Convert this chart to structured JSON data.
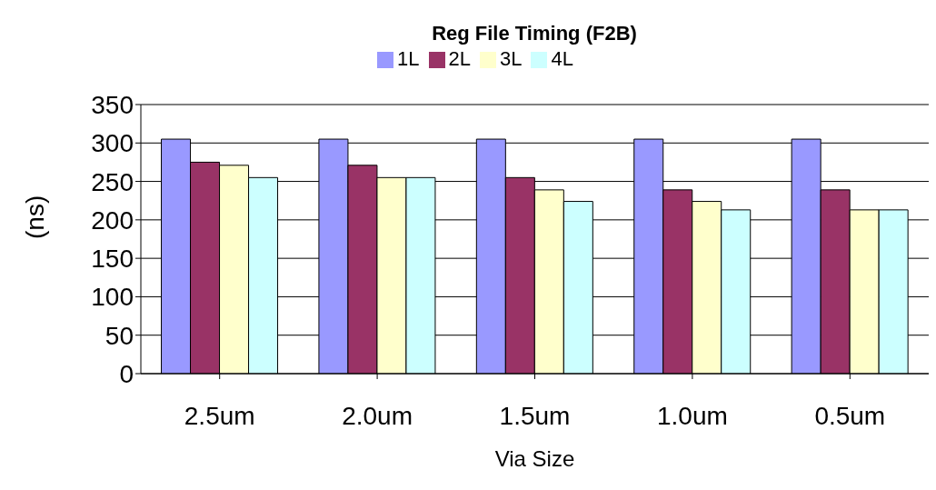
{
  "chart_data": {
    "type": "bar",
    "title": "Reg File Timing (F2B)",
    "xlabel": "Via Size",
    "ylabel": "(ns)",
    "categories": [
      "2.5um",
      "2.0um",
      "1.5um",
      "1.0um",
      "0.5um"
    ],
    "series": [
      {
        "name": "1L",
        "color": "#9999ff",
        "values": [
          305,
          305,
          305,
          305,
          305
        ]
      },
      {
        "name": "2L",
        "color": "#993366",
        "values": [
          275,
          271,
          255,
          239,
          239
        ]
      },
      {
        "name": "3L",
        "color": "#ffffcc",
        "values": [
          271,
          255,
          239,
          224,
          213
        ]
      },
      {
        "name": "4L",
        "color": "#ccffff",
        "values": [
          255,
          255,
          224,
          213,
          213
        ]
      }
    ],
    "ylim": [
      0,
      350
    ],
    "yticks": [
      0,
      50,
      100,
      150,
      200,
      250,
      300,
      350
    ],
    "grid": "y",
    "legend": "top"
  }
}
